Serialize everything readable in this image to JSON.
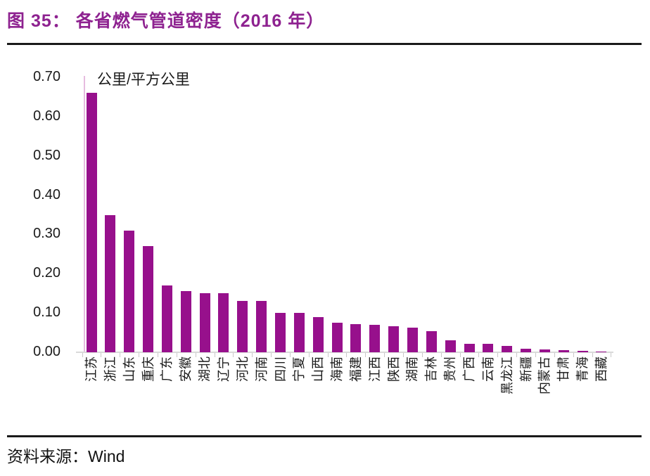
{
  "figure": {
    "title": "图 35：  各省燃气管道密度（2016 年）",
    "source_label": "资料来源：",
    "source_value": "Wind"
  },
  "colors": {
    "title_purple": "#8E2290",
    "bar_magenta": "#97108C",
    "axis_gray": "#D9D9D9",
    "y_axis_pink": "#E6BCE0",
    "text_black": "#1A1A1A",
    "rule_black": "#1A1A1A"
  },
  "chart_data": {
    "type": "bar",
    "title": "各省燃气管道密度（2016 年）",
    "unit_label": "公里/平方公里",
    "xlabel": "",
    "ylabel": "公里/平方公里",
    "ylim": [
      0,
      0.7
    ],
    "ytick_step": 0.1,
    "yticks": [
      "0.70",
      "0.60",
      "0.50",
      "0.40",
      "0.30",
      "0.20",
      "0.10",
      "0.00"
    ],
    "grid": false,
    "legend_position": "none",
    "bar_color": "#97108C",
    "categories": [
      "江苏",
      "浙江",
      "山东",
      "重庆",
      "广东",
      "安徽",
      "湖北",
      "辽宁",
      "河北",
      "河南",
      "四川",
      "宁夏",
      "山西",
      "海南",
      "福建",
      "江西",
      "陕西",
      "湖南",
      "吉林",
      "贵州",
      "广西",
      "云南",
      "黑龙江",
      "新疆",
      "内蒙古",
      "甘肃",
      "青海",
      "西藏"
    ],
    "values": [
      0.66,
      0.35,
      0.31,
      0.27,
      0.17,
      0.155,
      0.15,
      0.15,
      0.13,
      0.13,
      0.1,
      0.1,
      0.09,
      0.075,
      0.072,
      0.07,
      0.067,
      0.062,
      0.053,
      0.03,
      0.021,
      0.021,
      0.017,
      0.009,
      0.008,
      0.006,
      0.003,
      0.001
    ]
  }
}
